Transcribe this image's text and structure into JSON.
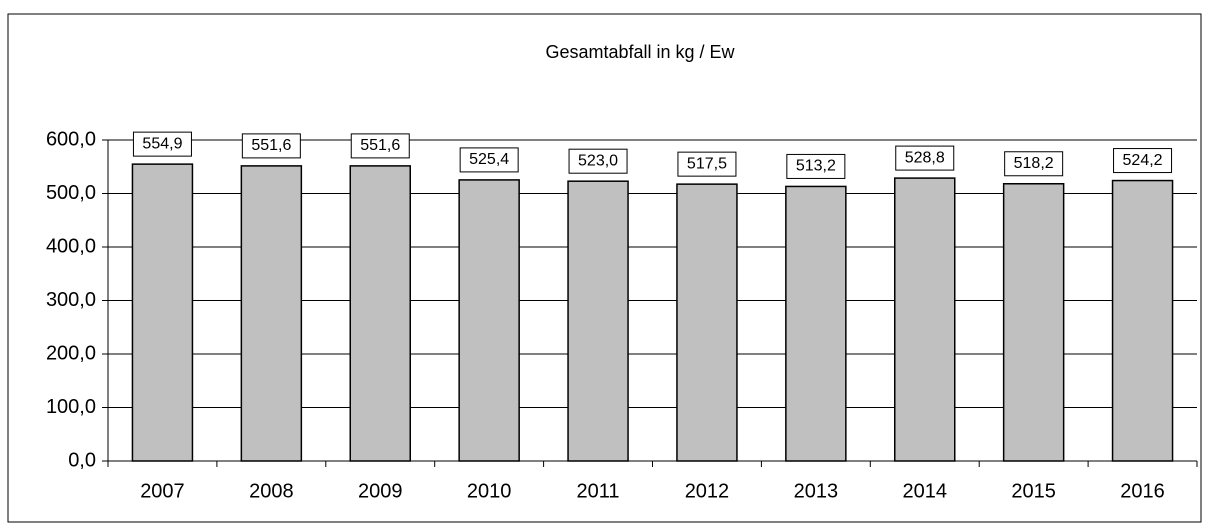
{
  "chart_data": {
    "type": "bar",
    "title": "Gesamtabfall in kg / Ew",
    "categories": [
      "2007",
      "2008",
      "2009",
      "2010",
      "2011",
      "2012",
      "2013",
      "2014",
      "2015",
      "2016"
    ],
    "values": [
      554.9,
      551.6,
      551.6,
      525.4,
      523.0,
      517.5,
      513.2,
      528.8,
      518.2,
      524.2
    ],
    "value_labels": [
      "554,9",
      "551,6",
      "551,6",
      "525,4",
      "523,0",
      "517,5",
      "513,2",
      "528,8",
      "518,2",
      "524,2"
    ],
    "color": "#c0c0c0",
    "ylim": [
      0,
      600
    ],
    "yticks": [
      {
        "value": 0,
        "label": "0,0"
      },
      {
        "value": 100,
        "label": "100,0"
      },
      {
        "value": 200,
        "label": "200,0"
      },
      {
        "value": 300,
        "label": "300,0"
      },
      {
        "value": 400,
        "label": "400,0"
      },
      {
        "value": 500,
        "label": "500,0"
      },
      {
        "value": 600,
        "label": "600,0"
      }
    ],
    "grid": true
  }
}
